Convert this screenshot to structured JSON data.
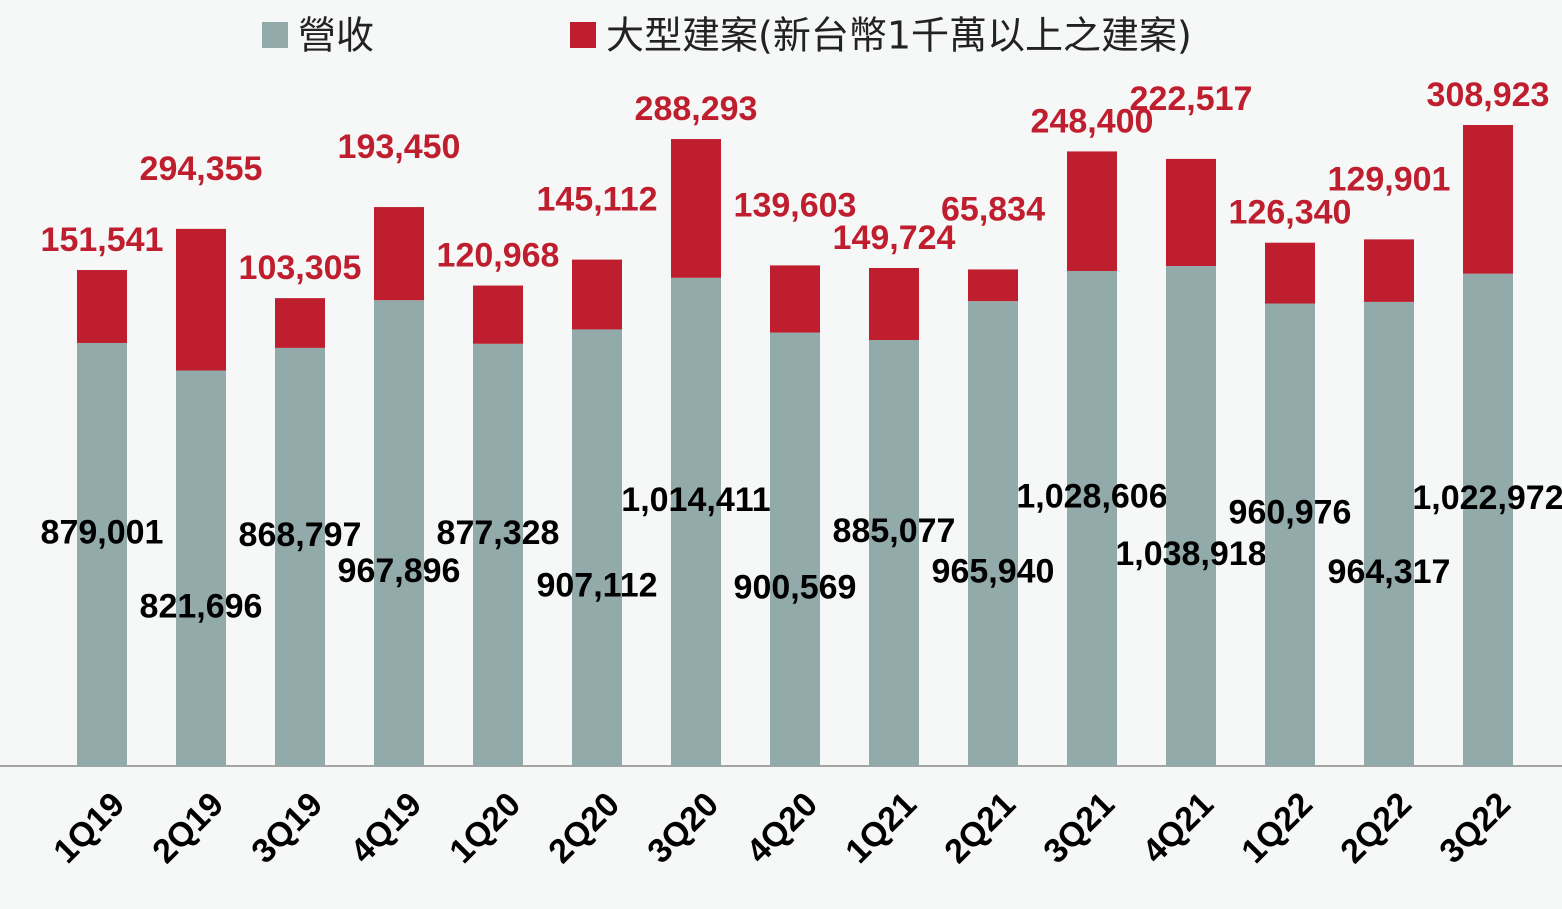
{
  "chart_data": {
    "type": "stacked-bar",
    "categories": [
      "1Q19",
      "2Q19",
      "3Q19",
      "4Q19",
      "1Q20",
      "2Q20",
      "3Q20",
      "4Q20",
      "1Q21",
      "2Q21",
      "3Q21",
      "4Q21",
      "1Q22",
      "2Q22",
      "3Q22"
    ],
    "series": [
      {
        "name": "營收",
        "color": "#93aaaa",
        "values": [
          879001,
          821696,
          868797,
          967896,
          877328,
          907112,
          1014411,
          900569,
          885077,
          965940,
          1028606,
          1038918,
          960976,
          964317,
          1022972
        ],
        "value_labels": [
          "879,001",
          "821,696",
          "868,797",
          "967,896",
          "877,328",
          "907,112",
          "1,014,411",
          "900,569",
          "885,077",
          "965,940",
          "1,028,606",
          "1,038,918",
          "960,976",
          "964,317",
          "1,022,972"
        ]
      },
      {
        "name": "大型建案(新台幣1千萬以上之建案)",
        "color": "#be1e2d",
        "values": [
          151541,
          294355,
          103305,
          193450,
          120968,
          145112,
          288293,
          139603,
          149724,
          65834,
          248400,
          222517,
          126340,
          129901,
          308923
        ],
        "value_labels": [
          "151,541",
          "294,355",
          "103,305",
          "193,450",
          "120,968",
          "145,112",
          "288,293",
          "139,603",
          "149,724",
          "65,834",
          "248,400",
          "222,517",
          "126,340",
          "129,901",
          "308,923"
        ]
      }
    ]
  }
}
